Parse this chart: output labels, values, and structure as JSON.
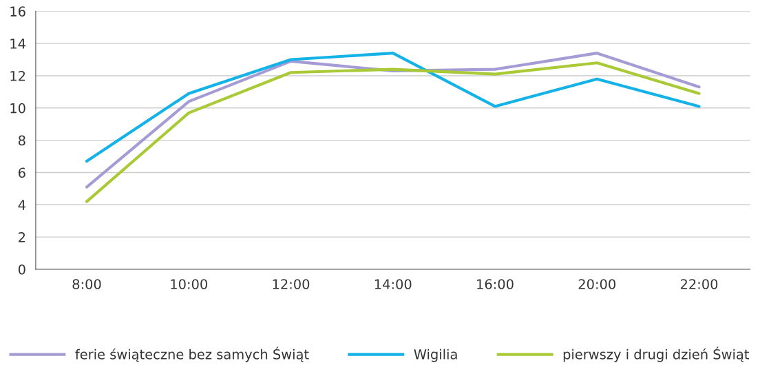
{
  "chart_data": {
    "type": "line",
    "categories": [
      "8:00",
      "10:00",
      "12:00",
      "14:00",
      "16:00",
      "20:00",
      "22:00"
    ],
    "series": [
      {
        "name": "ferie świąteczne bez samych Świąt",
        "color": "#a59cd6",
        "values": [
          5.1,
          10.4,
          12.9,
          12.3,
          12.4,
          13.4,
          11.3
        ]
      },
      {
        "name": "Wigilia",
        "color": "#14b2e6",
        "values": [
          6.7,
          10.9,
          13.0,
          13.4,
          10.1,
          11.8,
          10.1
        ]
      },
      {
        "name": "pierwszy i drugi dzień Świąt",
        "color": "#aac936",
        "values": [
          4.2,
          9.7,
          12.2,
          12.4,
          12.1,
          12.8,
          10.9
        ]
      }
    ],
    "ylim": [
      0,
      16
    ],
    "yticks": [
      0,
      2,
      4,
      6,
      8,
      10,
      12,
      14,
      16
    ],
    "grid": "y",
    "legend": "bottom",
    "marker": "none",
    "line_style": "solid"
  }
}
